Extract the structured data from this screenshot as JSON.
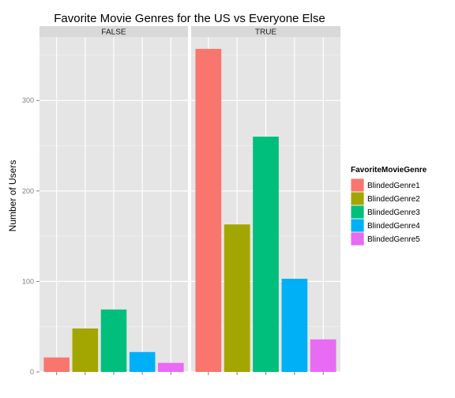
{
  "chart_data": {
    "type": "bar",
    "title": "Favorite Movie Genres for the US vs Everyone Else",
    "xlabel": "",
    "ylabel": "Number of Users",
    "ylim": [
      0,
      370
    ],
    "yticks": [
      0,
      100,
      200,
      300
    ],
    "grid": true,
    "legend_position": "right",
    "legend_title": "FavoriteMovieGenre",
    "categories": [
      "BlindedGenre1",
      "BlindedGenre2",
      "BlindedGenre3",
      "BlindedGenre4",
      "BlindedGenre5"
    ],
    "colors": [
      "#F8766D",
      "#A3A500",
      "#00BF7D",
      "#00B0F6",
      "#E76BF3"
    ],
    "panels": [
      {
        "name": "FALSE",
        "values": [
          16,
          48,
          69,
          22,
          10
        ]
      },
      {
        "name": "TRUE",
        "values": [
          357,
          163,
          260,
          103,
          36
        ]
      }
    ]
  }
}
